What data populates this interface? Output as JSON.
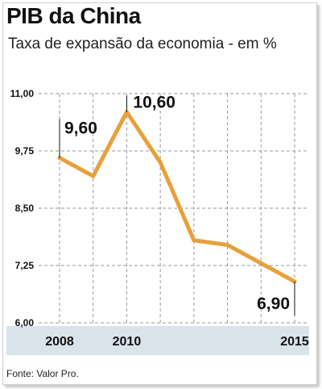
{
  "header": {
    "title": "PIB da China",
    "subtitle": "Taxa de expansão da economia - em %"
  },
  "footer": {
    "source": "Fonte: Valor Pro."
  },
  "colors": {
    "line": "#e8a03a",
    "xaxis_band": "#d8e4ea",
    "grid": "#9a9a9a"
  },
  "chart_data": {
    "type": "line",
    "title": "PIB da China",
    "subtitle": "Taxa de expansão da economia - em %",
    "x": [
      2008,
      2009,
      2010,
      2011,
      2012,
      2013,
      2014,
      2015
    ],
    "series": [
      {
        "values": [
          9.6,
          9.2,
          10.6,
          9.5,
          7.8,
          7.7,
          7.3,
          6.9
        ]
      }
    ],
    "ylim": [
      6.0,
      11.0
    ],
    "yticks": [
      "11,00",
      "9,75",
      "8,50",
      "7,25",
      "6,00"
    ],
    "xtick_labels": [
      {
        "x": 2008,
        "label": "2008"
      },
      {
        "x": 2010,
        "label": "2010"
      },
      {
        "x": 2015,
        "label": "2015"
      }
    ],
    "data_labels": [
      {
        "x": 2008,
        "label": "9,60"
      },
      {
        "x": 2010,
        "label": "10,60"
      },
      {
        "x": 2015,
        "label": "6,90"
      }
    ],
    "grid": true,
    "legend": "none"
  }
}
